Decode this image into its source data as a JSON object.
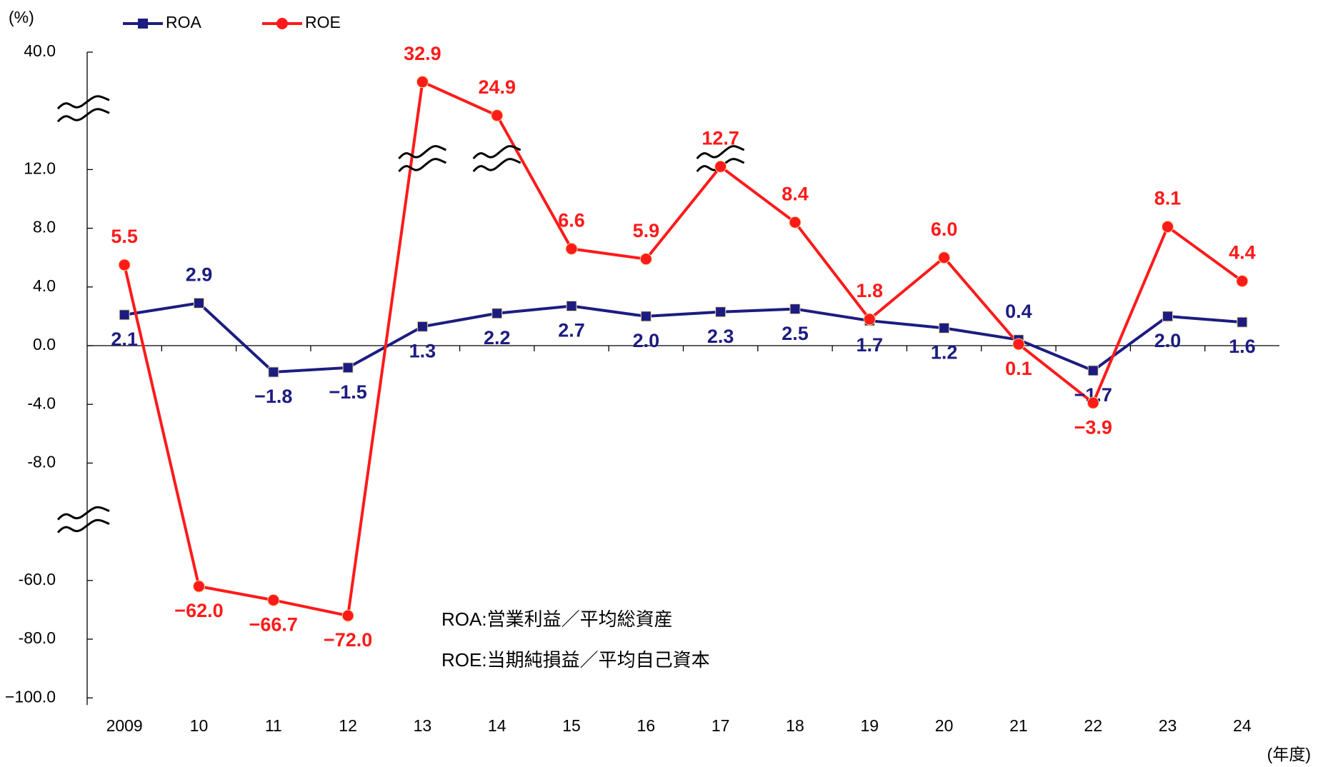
{
  "chart_data": {
    "type": "line",
    "y_unit_label": "(%)",
    "x_unit_label": "(年度)",
    "categories": [
      "2009",
      "10",
      "11",
      "12",
      "13",
      "14",
      "15",
      "16",
      "17",
      "18",
      "19",
      "20",
      "21",
      "22",
      "23",
      "24"
    ],
    "series": [
      {
        "name": "ROA",
        "color": "#1c1c80",
        "marker": "square",
        "values": [
          2.1,
          2.9,
          -1.8,
          -1.5,
          1.3,
          2.2,
          2.7,
          2.0,
          2.3,
          2.5,
          1.7,
          1.2,
          0.4,
          -1.7,
          2.0,
          1.6
        ],
        "value_labels": [
          "2.1",
          "2.9",
          "−1.8",
          "−1.5",
          "1.3",
          "2.2",
          "2.7",
          "2.0",
          "2.3",
          "2.5",
          "1.7",
          "1.2",
          "0.4",
          "−1.7",
          "2.0",
          "1.6"
        ]
      },
      {
        "name": "ROE",
        "color": "#ff1a1a",
        "marker": "circle",
        "values": [
          5.5,
          -62.0,
          -66.7,
          -72.0,
          32.9,
          24.9,
          6.6,
          5.9,
          12.7,
          8.4,
          1.8,
          6.0,
          0.1,
          -3.9,
          8.1,
          4.4
        ],
        "value_labels": [
          "5.5",
          "−62.0",
          "−66.7",
          "−72.0",
          "32.9",
          "24.9",
          "6.6",
          "5.9",
          "12.7",
          "8.4",
          "1.8",
          "6.0",
          "0.1",
          "−3.9",
          "8.1",
          "4.4"
        ]
      }
    ],
    "ylim": [
      -100,
      40
    ],
    "yticks": [
      {
        "value": 40,
        "label": "40.0"
      },
      {
        "value": 12,
        "label": "12.0"
      },
      {
        "value": 8,
        "label": "8.0"
      },
      {
        "value": 4,
        "label": "4.0"
      },
      {
        "value": 0,
        "label": "0.0"
      },
      {
        "value": -4,
        "label": "-4.0"
      },
      {
        "value": -8,
        "label": "-8.0"
      },
      {
        "value": -60,
        "label": "-60.0"
      },
      {
        "value": -80,
        "label": "-80.0"
      },
      {
        "value": -100,
        "label": "−100.0"
      }
    ],
    "y_breaks": [
      [
        12,
        40
      ],
      [
        -60,
        -8
      ]
    ],
    "grid": false,
    "legend": "top-left",
    "annotations": [
      "ROA:営業利益／平均総資産",
      "ROE:当期純損益／平均自己資本"
    ]
  }
}
